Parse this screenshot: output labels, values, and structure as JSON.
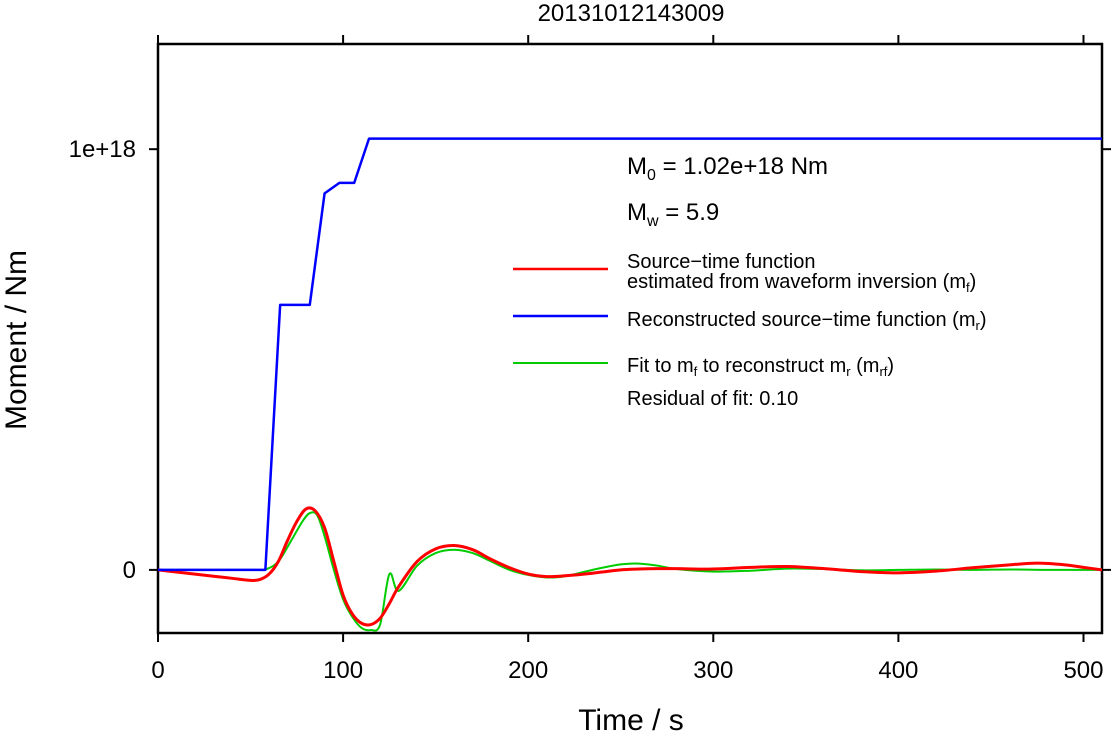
{
  "chart_data": {
    "type": "line",
    "title": "20131012143009",
    "xlabel": "Time / s",
    "ylabel": "Moment / Nm",
    "xlim": [
      0,
      510
    ],
    "ylim": [
      -1.5e+17,
      1.25e+18
    ],
    "x_ticks": [
      0,
      100,
      200,
      300,
      400,
      500
    ],
    "x_tick_labels": [
      "0",
      "100",
      "200",
      "300",
      "400",
      "500"
    ],
    "y_ticks": [
      0,
      1e+18
    ],
    "y_tick_labels": [
      "0",
      "1e+18"
    ],
    "grid": false,
    "legend_position": "right",
    "annotations": {
      "m0_prefix": "M",
      "m0_sub": "0",
      "m0_text": " = 1.02e+18 Nm",
      "mw_prefix": "M",
      "mw_sub": "w",
      "mw_text": " = 5.9",
      "residual": "Residual of fit: 0.10"
    },
    "legend": [
      {
        "color": "#ff0000",
        "line1": "Source−time function",
        "line2_pre": "estimated from waveform inversion (m",
        "line2_sub": "f",
        "line2_post": ")"
      },
      {
        "color": "#0000ff",
        "line1_pre": "Reconstructed source−time function (m",
        "line1_sub": "r",
        "line1_post": ")"
      },
      {
        "color": "#00cc00",
        "p1": "Fit to m",
        "s1": "f",
        "p2": " to reconstruct m",
        "s2": "r",
        "p3": " (m",
        "s3": "rf",
        "p4": ")"
      }
    ],
    "series": [
      {
        "color": "#0000ff",
        "x": [
          0,
          58,
          66,
          82,
          90,
          98,
          106,
          114,
          510
        ],
        "y": [
          0,
          0,
          6.3e+17,
          6.3e+17,
          8.95e+17,
          9.2e+17,
          9.2e+17,
          1.025e+18,
          1.025e+18
        ]
      },
      {
        "color": "#ff0000",
        "x": [
          0,
          10,
          20,
          30,
          40,
          50,
          55,
          60,
          65,
          70,
          75,
          80,
          85,
          90,
          95,
          100,
          105,
          110,
          115,
          120,
          125,
          130,
          140,
          150,
          160,
          170,
          180,
          190,
          200,
          210,
          220,
          230,
          240,
          250,
          260,
          270,
          280,
          300,
          320,
          340,
          360,
          380,
          400,
          420,
          440,
          460,
          475,
          490,
          500,
          510
        ],
        "y": [
          0,
          -5000000000000000.0,
          -1e+16,
          -1.5e+16,
          -2e+16,
          -2.5e+16,
          -2.3e+16,
          -1e+16,
          2e+16,
          7e+16,
          1.15e+17,
          1.45e+17,
          1.4e+17,
          1e+17,
          2e+16,
          -6e+16,
          -1.05e+17,
          -1.27e+17,
          -1.3e+17,
          -1.15e+17,
          -8e+16,
          -4e+16,
          2e+16,
          5e+16,
          5.8e+16,
          4.8e+16,
          2.5e+16,
          5000000000000000.0,
          -1e+16,
          -1.6e+16,
          -1.4e+16,
          -1e+16,
          -5000000000000000.0,
          0,
          2000000000000000.0,
          3000000000000000.0,
          3000000000000000.0,
          2000000000000000.0,
          6000000000000000.0,
          8000000000000000.0,
          3000000000000000.0,
          -4000000000000000.0,
          -7000000000000000.0,
          -3000000000000000.0,
          5000000000000000.0,
          1.2e+16,
          1.6e+16,
          1.2e+16,
          6000000000000000.0,
          0
        ]
      },
      {
        "color": "#00cc00",
        "x": [
          0,
          50,
          58,
          65,
          72,
          78,
          82,
          86,
          90,
          95,
          100,
          105,
          110,
          115,
          120,
          125,
          130,
          140,
          150,
          160,
          170,
          180,
          190,
          200,
          210,
          220,
          230,
          240,
          250,
          260,
          270,
          280,
          300,
          320,
          340,
          360,
          380,
          400,
          420,
          440,
          460,
          480,
          510
        ],
        "y": [
          0,
          0,
          1000000000000000.0,
          2e+16,
          7e+16,
          1.15e+17,
          1.35e+17,
          1.3e+17,
          8e+16,
          0,
          -7e+16,
          -1.12e+17,
          -1.38e+17,
          -1.43e+17,
          -1.3e+17,
          -1e+16,
          -5e+16,
          1e+16,
          4e+16,
          4.8e+16,
          4e+16,
          2e+16,
          0,
          -1.2e+16,
          -1.8e+16,
          -1.5e+16,
          -5000000000000000.0,
          5000000000000000.0,
          1.3e+16,
          1.5e+16,
          1e+16,
          2000000000000000.0,
          -4000000000000000.0,
          -2000000000000000.0,
          3000000000000000.0,
          2000000000000000.0,
          -1000000000000000.0,
          0,
          1000000000000000.0,
          0,
          1000000000000000.0,
          0,
          0
        ]
      }
    ]
  }
}
